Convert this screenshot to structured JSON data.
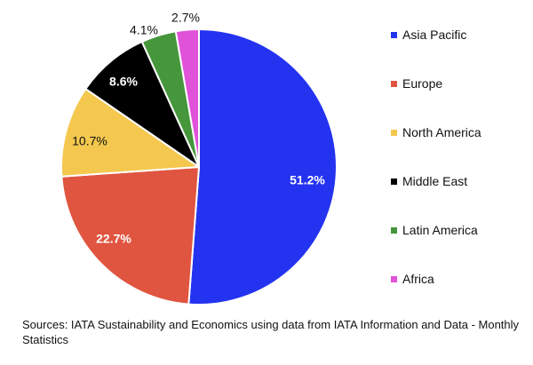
{
  "chart_data": {
    "type": "pie",
    "categories": [
      "Asia Pacific",
      "Europe",
      "North America",
      "Middle East",
      "Latin America",
      "Africa"
    ],
    "values": [
      51.2,
      22.7,
      10.7,
      8.6,
      4.1,
      2.7
    ],
    "value_labels": [
      "51.2%",
      "22.7%",
      "10.7%",
      "8.6%",
      "4.1%",
      "2.7%"
    ],
    "colors": [
      "#2433f0",
      "#e05540",
      "#f4c84f",
      "#000000",
      "#46963c",
      "#e052d8"
    ],
    "label_colors": [
      "#ffffff",
      "#ffffff",
      "#111111",
      "#ffffff",
      "#111111",
      "#111111"
    ],
    "label_bold": [
      true,
      true,
      false,
      true,
      false,
      false
    ],
    "label_outside": [
      false,
      false,
      false,
      false,
      true,
      true
    ],
    "start_angle": "12 o'clock",
    "direction": "clockwise",
    "legend_position": "right"
  },
  "source_note": "Sources: IATA Sustainability and Economics using data from IATA Information and Data - Monthly Statistics"
}
